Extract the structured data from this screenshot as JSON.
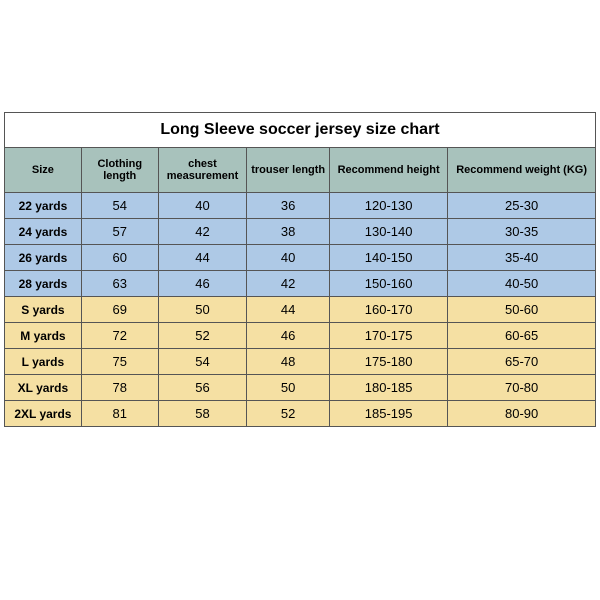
{
  "title": "Long Sleeve soccer jersey size chart",
  "columns": [
    "Size",
    "Clothing length",
    "chest measurement",
    "trouser length",
    "Recommend height",
    "Recommend weight (KG)"
  ],
  "col_widths_pct": [
    13,
    13,
    15,
    14,
    20,
    25
  ],
  "header_bg": "#a8c2bc",
  "group_colors": {
    "kids": "#aec9e6",
    "adult": "#f5e0a3"
  },
  "border_color": "#555555",
  "rows": [
    {
      "group": "kids",
      "cells": [
        "22 yards",
        "54",
        "40",
        "36",
        "120-130",
        "25-30"
      ]
    },
    {
      "group": "kids",
      "cells": [
        "24 yards",
        "57",
        "42",
        "38",
        "130-140",
        "30-35"
      ]
    },
    {
      "group": "kids",
      "cells": [
        "26 yards",
        "60",
        "44",
        "40",
        "140-150",
        "35-40"
      ]
    },
    {
      "group": "kids",
      "cells": [
        "28 yards",
        "63",
        "46",
        "42",
        "150-160",
        "40-50"
      ]
    },
    {
      "group": "adult",
      "cells": [
        "S yards",
        "69",
        "50",
        "44",
        "160-170",
        "50-60"
      ]
    },
    {
      "group": "adult",
      "cells": [
        "M yards",
        "72",
        "52",
        "46",
        "170-175",
        "60-65"
      ]
    },
    {
      "group": "adult",
      "cells": [
        "L yards",
        "75",
        "54",
        "48",
        "175-180",
        "65-70"
      ]
    },
    {
      "group": "adult",
      "cells": [
        "XL yards",
        "78",
        "56",
        "50",
        "180-185",
        "70-80"
      ]
    },
    {
      "group": "adult",
      "cells": [
        "2XL yards",
        "81",
        "58",
        "52",
        "185-195",
        "80-90"
      ]
    }
  ]
}
